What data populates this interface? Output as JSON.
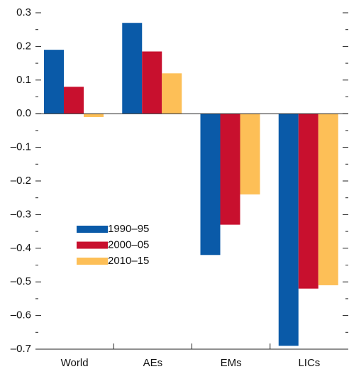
{
  "chart_data": {
    "type": "bar",
    "categories": [
      "World",
      "AEs",
      "EMs",
      "LICs"
    ],
    "series": [
      {
        "name": "1990–95",
        "color": "#0a5aa8",
        "values": [
          0.19,
          0.27,
          -0.42,
          -0.69
        ]
      },
      {
        "name": "2000–05",
        "color": "#c8102e",
        "values": [
          0.08,
          0.185,
          -0.33,
          -0.52
        ]
      },
      {
        "name": "2010–15",
        "color": "#fdbf57",
        "values": [
          -0.01,
          0.12,
          -0.24,
          -0.51
        ]
      }
    ],
    "ylim": [
      -0.7,
      0.3
    ],
    "yticks": [
      0.3,
      0.2,
      0.1,
      {
        "value": 0,
        "label": "0.0"
      },
      {
        "value": -0.1,
        "label": "–0.1"
      },
      {
        "value": -0.2,
        "label": "–0.2"
      },
      {
        "value": -0.3,
        "label": "–0.3"
      },
      {
        "value": -0.4,
        "label": "–0.4"
      },
      {
        "value": -0.5,
        "label": "–0.5"
      },
      {
        "value": -0.6,
        "label": "–0.6"
      },
      {
        "value": -0.7,
        "label": "–0.7"
      }
    ],
    "legend": "lower-left"
  }
}
